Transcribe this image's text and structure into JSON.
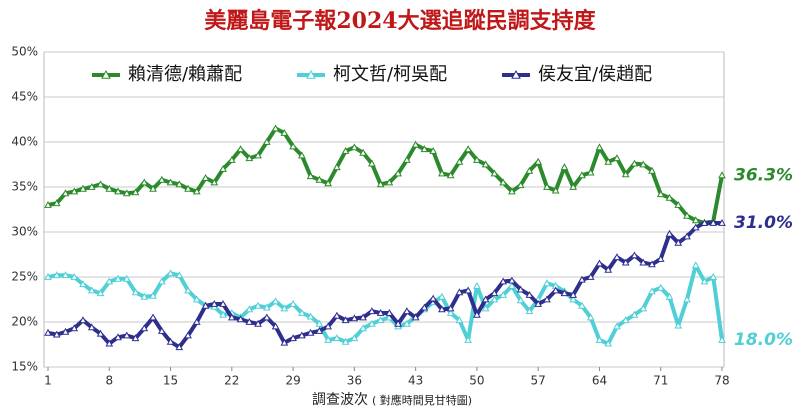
{
  "chart_data": {
    "type": "line",
    "title": "美麗島電子報2024大選追蹤民調支持度",
    "x_label": "調查波次",
    "x_label_note": "( 對應時間見甘特圖)",
    "x": [
      1,
      2,
      3,
      4,
      5,
      6,
      7,
      8,
      9,
      10,
      11,
      12,
      13,
      14,
      15,
      16,
      17,
      18,
      19,
      20,
      21,
      22,
      23,
      24,
      25,
      26,
      27,
      28,
      29,
      30,
      31,
      32,
      33,
      34,
      35,
      36,
      37,
      38,
      39,
      40,
      41,
      42,
      43,
      44,
      45,
      46,
      47,
      48,
      49,
      50,
      51,
      52,
      53,
      54,
      55,
      56,
      57,
      58,
      59,
      60,
      61,
      62,
      63,
      64,
      65,
      66,
      67,
      68,
      69,
      70,
      71,
      72,
      73,
      74,
      75,
      76,
      77,
      78
    ],
    "xlim": [
      1,
      78
    ],
    "xticks": [
      1,
      8,
      15,
      22,
      29,
      36,
      43,
      50,
      57,
      64,
      71,
      78
    ],
    "ylim": [
      15,
      50
    ],
    "yticks": [
      {
        "value": 15,
        "label": "15%"
      },
      {
        "value": 20,
        "label": "20%"
      },
      {
        "value": 25,
        "label": "25%"
      },
      {
        "value": 30,
        "label": "30%"
      },
      {
        "value": 35,
        "label": "35%"
      },
      {
        "value": 40,
        "label": "40%"
      },
      {
        "value": 45,
        "label": "45%"
      },
      {
        "value": 50,
        "label": "50%"
      }
    ],
    "grid": true,
    "legend": "top",
    "series": [
      {
        "name": "賴清德/賴蕭配",
        "color": "#2b8a2b",
        "values": [
          33,
          33.2,
          34.3,
          34.5,
          34.8,
          35,
          35.3,
          34.8,
          34.5,
          34.3,
          34.4,
          35.5,
          34.8,
          35.8,
          35.5,
          35.3,
          34.8,
          34.5,
          36,
          35.5,
          37,
          38,
          39.2,
          38.2,
          38.5,
          40,
          41.5,
          41,
          39.5,
          38.5,
          36.2,
          35.8,
          35.4,
          37.2,
          39,
          39.4,
          38.8,
          37.6,
          35.3,
          35.5,
          36.5,
          38,
          39.7,
          39.2,
          39,
          36.5,
          36.3,
          37.8,
          39.2,
          38,
          37.5,
          36.5,
          35.5,
          34.5,
          35.2,
          36.8,
          37.8,
          35,
          34.6,
          37.2,
          35,
          36.3,
          36.6,
          39.4,
          37.8,
          38.2,
          36.4,
          37.6,
          37.5,
          36.8,
          34.2,
          33.8,
          33,
          31.8,
          31.3,
          31,
          31.2,
          36.3
        ],
        "value_labels": [
          null,
          null,
          null,
          null,
          null,
          null,
          null,
          null,
          null,
          null,
          null,
          null,
          null,
          null,
          null,
          null,
          null,
          null,
          null,
          null,
          null,
          null,
          null,
          null,
          null,
          null,
          null,
          null,
          null,
          null,
          null,
          null,
          null,
          null,
          null,
          null,
          null,
          null,
          null,
          null,
          null,
          null,
          null,
          null,
          null,
          null,
          null,
          null,
          null,
          null,
          null,
          null,
          null,
          null,
          null,
          null,
          null,
          null,
          null,
          null,
          null,
          null,
          null,
          null,
          null,
          null,
          null,
          null,
          null,
          null,
          null,
          null,
          null,
          null,
          null,
          null,
          null,
          "36.3%"
        ]
      },
      {
        "name": "柯文哲/柯吳配",
        "color": "#4fcfd6",
        "values": [
          25,
          25.2,
          25.2,
          25,
          24.2,
          23.5,
          23.2,
          24.5,
          24.8,
          24.8,
          23.3,
          22.8,
          22.9,
          24.5,
          25.4,
          25.2,
          23.5,
          22.5,
          21.8,
          21.7,
          20.8,
          21,
          20.5,
          21.4,
          21.8,
          21.6,
          22.3,
          21.5,
          22,
          21,
          20.6,
          19.8,
          18,
          18.2,
          17.8,
          18.2,
          19.3,
          19.8,
          20.2,
          20.5,
          19.5,
          19.8,
          20.6,
          21.4,
          22.2,
          22.8,
          21,
          20.2,
          18,
          24,
          21.5,
          22.5,
          23,
          24,
          22.4,
          21.2,
          22.5,
          24.3,
          24,
          23.4,
          22.5,
          21.8,
          20.5,
          18,
          17.6,
          19.5,
          20.2,
          20.8,
          21.5,
          23.4,
          23.8,
          22.8,
          19.6,
          22.5,
          26.3,
          24.5,
          25,
          18
        ],
        "value_labels": [
          null,
          null,
          null,
          null,
          null,
          null,
          null,
          null,
          null,
          null,
          null,
          null,
          null,
          null,
          null,
          null,
          null,
          null,
          null,
          null,
          null,
          null,
          null,
          null,
          null,
          null,
          null,
          null,
          null,
          null,
          null,
          null,
          null,
          null,
          null,
          null,
          null,
          null,
          null,
          null,
          null,
          null,
          null,
          null,
          null,
          null,
          null,
          null,
          null,
          null,
          null,
          null,
          null,
          null,
          null,
          null,
          null,
          null,
          null,
          null,
          null,
          null,
          null,
          null,
          null,
          null,
          null,
          null,
          null,
          null,
          null,
          null,
          null,
          null,
          null,
          null,
          null,
          "18.0%"
        ]
      },
      {
        "name": "侯友宜/侯趙配",
        "color": "#2e2e8e",
        "values": [
          18.8,
          18.6,
          18.9,
          19.3,
          20.2,
          19.4,
          18.7,
          17.6,
          18.3,
          18.5,
          18.2,
          19.3,
          20.5,
          19,
          17.8,
          17.2,
          18.5,
          20,
          21.8,
          22,
          22,
          20.5,
          20.3,
          20,
          19.8,
          20.5,
          19.5,
          17.7,
          18.2,
          18.5,
          18.8,
          19,
          19.5,
          20.7,
          20.2,
          20.4,
          20.5,
          21.2,
          21,
          21,
          19.8,
          21.2,
          20.5,
          21.6,
          22.6,
          21.4,
          21.5,
          23.3,
          23.5,
          20.8,
          22.5,
          23.2,
          24.5,
          24.6,
          23.6,
          23,
          22,
          22.5,
          23.5,
          23.2,
          23,
          24.7,
          25,
          26.5,
          25.8,
          27.2,
          26.6,
          27.4,
          26.6,
          26.4,
          27,
          29.8,
          28.8,
          29.5,
          30.5,
          31,
          31,
          31
        ],
        "value_labels": [
          null,
          null,
          null,
          null,
          null,
          null,
          null,
          null,
          null,
          null,
          null,
          null,
          null,
          null,
          null,
          null,
          null,
          null,
          null,
          null,
          null,
          null,
          null,
          null,
          null,
          null,
          null,
          null,
          null,
          null,
          null,
          null,
          null,
          null,
          null,
          null,
          null,
          null,
          null,
          null,
          null,
          null,
          null,
          null,
          null,
          null,
          null,
          null,
          null,
          null,
          null,
          null,
          null,
          null,
          null,
          null,
          null,
          null,
          null,
          null,
          null,
          null,
          null,
          null,
          null,
          null,
          null,
          null,
          null,
          null,
          null,
          null,
          null,
          null,
          null,
          null,
          null,
          "31.0%"
        ]
      }
    ]
  }
}
